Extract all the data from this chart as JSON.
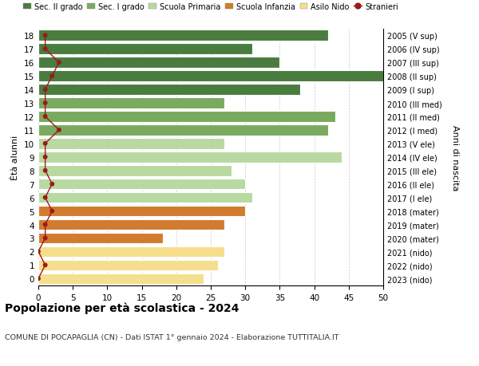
{
  "ages": [
    0,
    1,
    2,
    3,
    4,
    5,
    6,
    7,
    8,
    9,
    10,
    11,
    12,
    13,
    14,
    15,
    16,
    17,
    18
  ],
  "years": [
    "2023 (nido)",
    "2022 (nido)",
    "2021 (nido)",
    "2020 (mater)",
    "2019 (mater)",
    "2018 (mater)",
    "2017 (I ele)",
    "2016 (II ele)",
    "2015 (III ele)",
    "2014 (IV ele)",
    "2013 (V ele)",
    "2012 (I med)",
    "2011 (II med)",
    "2010 (III med)",
    "2009 (I sup)",
    "2008 (II sup)",
    "2007 (III sup)",
    "2006 (IV sup)",
    "2005 (V sup)"
  ],
  "values": [
    24,
    26,
    27,
    18,
    27,
    30,
    31,
    30,
    28,
    44,
    27,
    42,
    43,
    27,
    38,
    50,
    35,
    31,
    42
  ],
  "bar_colors": [
    "#f5de8c",
    "#f5de8c",
    "#f5de8c",
    "#d27a2e",
    "#d27a2e",
    "#d27a2e",
    "#b8d9a0",
    "#b8d9a0",
    "#b8d9a0",
    "#b8d9a0",
    "#b8d9a0",
    "#7aaa5e",
    "#7aaa5e",
    "#7aaa5e",
    "#4a7c3f",
    "#4a7c3f",
    "#4a7c3f",
    "#4a7c3f",
    "#4a7c3f"
  ],
  "stranieri_color": "#9b1a1a",
  "stranieri_values": [
    0,
    1,
    0,
    1,
    1,
    2,
    1,
    2,
    1,
    1,
    1,
    3,
    1,
    1,
    1,
    2,
    3,
    1,
    1
  ],
  "xlim": [
    0,
    50
  ],
  "xlabel_ticks": [
    0,
    5,
    10,
    15,
    20,
    25,
    30,
    35,
    40,
    45,
    50
  ],
  "ylabel": "Ètà alunni",
  "right_label": "Anni di nascita",
  "title": "Popolazione per età scolastica - 2024",
  "subtitle": "COMUNE DI POCAPAGLIA (CN) - Dati ISTAT 1° gennaio 2024 - Elaborazione TUTTITALIA.IT",
  "legend_items": [
    {
      "label": "Sec. II grado",
      "color": "#4a7c3f"
    },
    {
      "label": "Sec. I grado",
      "color": "#7aaa5e"
    },
    {
      "label": "Scuola Primaria",
      "color": "#b8d9a0"
    },
    {
      "label": "Scuola Infanzia",
      "color": "#d27a2e"
    },
    {
      "label": "Asilo Nido",
      "color": "#f5de8c"
    },
    {
      "label": "Stranieri",
      "color": "#9b1a1a"
    }
  ],
  "bg_color": "#ffffff",
  "grid_color": "#cccccc"
}
